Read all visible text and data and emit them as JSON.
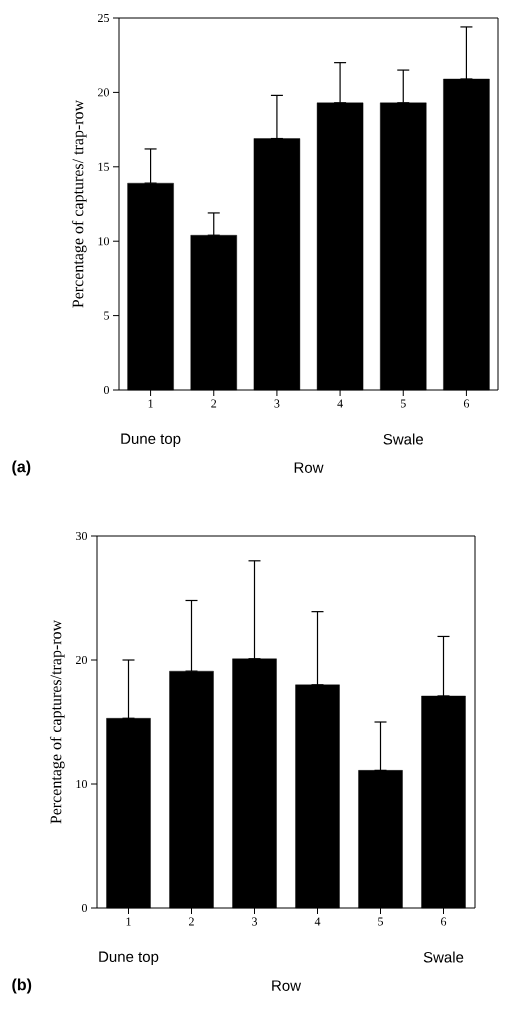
{
  "chart_data": [
    {
      "type": "bar",
      "categories": [
        "1",
        "2",
        "3",
        "4",
        "5",
        "6"
      ],
      "values": [
        13.9,
        10.4,
        16.9,
        19.3,
        19.3,
        20.9
      ],
      "color": "#000000",
      "errors": [
        [
          13.9,
          16.2
        ],
        [
          10.4,
          11.9
        ],
        [
          16.9,
          19.8
        ],
        [
          19.3,
          22.0
        ],
        [
          19.3,
          21.5
        ],
        [
          20.9,
          24.4
        ]
      ],
      "ylim": [
        0,
        25
      ],
      "yticks": [
        0,
        5,
        10,
        15,
        20,
        25
      ],
      "xlabel": "Row",
      "ylabel": "Percentage of captures/ trap-row",
      "annotations": [
        "Dune top",
        "Swale",
        "(a)"
      ]
    },
    {
      "type": "bar",
      "categories": [
        "1",
        "2",
        "3",
        "4",
        "5",
        "6"
      ],
      "values": [
        15.3,
        19.1,
        20.1,
        18.0,
        11.1,
        17.1
      ],
      "color": "#000000",
      "errors": [
        [
          15.3,
          20.0
        ],
        [
          19.1,
          24.8
        ],
        [
          20.1,
          28.0
        ],
        [
          18.0,
          23.9
        ],
        [
          11.1,
          15.0
        ],
        [
          17.1,
          21.9
        ]
      ],
      "ylim": [
        0,
        30
      ],
      "yticks": [
        0,
        10,
        20,
        30
      ],
      "xlabel": "Row",
      "ylabel": "Percentage of captures/trap-row",
      "annotations": [
        "Dune top",
        "Swale",
        "(b)"
      ]
    }
  ]
}
